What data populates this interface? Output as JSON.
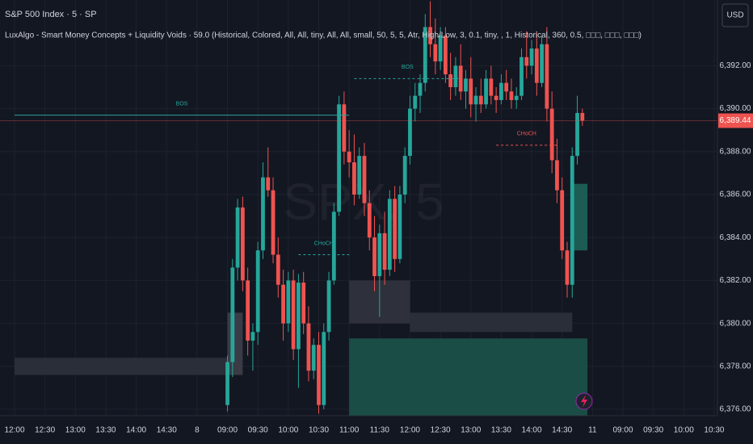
{
  "chart_data": {
    "type": "candlestick",
    "title": "S&P 500 Index · 5 · SP",
    "subtitle": "LuxAlgo - Smart Money Concepts + Liquidity Voids · 59.0 (Historical, Colored, All, All, tiny, All, All, small, 50, 5, 5, Atr, High/Low, 3, 0.1, tiny, , 1, Historical, 360, 0.5, □□□, □□□, □□□)",
    "currency": "USD",
    "watermark": "SPX, 5",
    "up_color": "#26a69a",
    "down_color": "#ef5350",
    "grid": true,
    "ylim": [
      6375.7,
      6395.06
    ],
    "yticks": [
      {
        "value": 6376,
        "label": "6,376.00"
      },
      {
        "value": 6378,
        "label": "6,378.00"
      },
      {
        "value": 6380,
        "label": "6,380.00"
      },
      {
        "value": 6382,
        "label": "6,382.00"
      },
      {
        "value": 6384,
        "label": "6,384.00"
      },
      {
        "value": 6386,
        "label": "6,386.00"
      },
      {
        "value": 6388,
        "label": "6,388.00"
      },
      {
        "value": 6390,
        "label": "6,390.00"
      },
      {
        "value": 6392,
        "label": "6,392.00"
      }
    ],
    "categories": [
      "12:00",
      null,
      null,
      null,
      null,
      null,
      "12:30",
      null,
      null,
      null,
      null,
      null,
      "13:00",
      null,
      null,
      null,
      null,
      null,
      "13:30",
      null,
      null,
      null,
      null,
      null,
      "14:00",
      null,
      null,
      null,
      null,
      null,
      "14:30",
      null,
      null,
      null,
      null,
      null,
      "8",
      null,
      null,
      null,
      null,
      null,
      "09:00",
      null,
      null,
      null,
      null,
      null,
      "09:30",
      null,
      null,
      null,
      null,
      null,
      "10:00",
      null,
      null,
      null,
      null,
      null,
      "10:30",
      null,
      null,
      null,
      null,
      null,
      "11:00",
      null,
      null,
      null,
      null,
      null,
      "11:30",
      null,
      null,
      null,
      null,
      null,
      "12:00",
      null,
      null,
      null,
      null,
      null,
      "12:30",
      null,
      null,
      null,
      null,
      null,
      "13:00",
      null,
      null,
      null,
      null,
      null,
      "13:30",
      null,
      null,
      null,
      null,
      null,
      "14:00",
      null,
      null,
      null,
      null,
      null,
      "14:30",
      null,
      null,
      null,
      null,
      null,
      "11",
      null,
      null,
      null,
      null,
      null,
      "09:00",
      null,
      null,
      null,
      null,
      null,
      "09:30",
      null,
      null,
      null,
      null,
      null,
      "10:00",
      null,
      null,
      null,
      null,
      null,
      "10:30"
    ],
    "open": [
      null,
      null,
      null,
      null,
      null,
      null,
      null,
      null,
      null,
      null,
      null,
      null,
      null,
      null,
      null,
      null,
      null,
      null,
      null,
      null,
      null,
      null,
      null,
      null,
      null,
      null,
      null,
      null,
      null,
      null,
      null,
      null,
      null,
      null,
      null,
      null,
      null,
      null,
      null,
      null,
      null,
      null,
      6376.2,
      6378.2,
      6382.6,
      6385.4,
      6382.0,
      6379.2,
      6379.6,
      6383.4,
      6386.8,
      6386.2,
      6383.2,
      6381.8,
      6380.0,
      6382.0,
      6378.8,
      6381.9,
      6380.0,
      6377.8,
      6379.0,
      6376.2,
      6379.6,
      6382.0,
      6385.2,
      6390.2,
      6388.0,
      6387.5,
      6386.0,
      6387.8,
      6385.6,
      6384.0,
      6382.2,
      6384.2,
      6382.5,
      6385.8,
      6383.0,
      6386.0,
      6387.8,
      6390.0,
      6390.6,
      6391.2,
      6393.8,
      6393.0,
      6392.2,
      6393.4,
      6391.6,
      6391.0,
      6392.0,
      6390.8,
      6391.4,
      6390.2,
      6390.6,
      6390.2,
      6391.4,
      6390.6,
      6390.4,
      6391.2,
      6390.8,
      6390.4,
      6390.6,
      6392.4,
      6392.0,
      6392.8,
      6391.2,
      6393.0,
      6390.0,
      6387.6,
      6386.2,
      6383.4,
      6381.8,
      6387.8,
      6389.8,
      null,
      null,
      null,
      null,
      null,
      null,
      null,
      null,
      null,
      null,
      null,
      null,
      null,
      null,
      null,
      null,
      null,
      null,
      null,
      null,
      null,
      null,
      null,
      null,
      null,
      null
    ],
    "high": [
      null,
      null,
      null,
      null,
      null,
      null,
      null,
      null,
      null,
      null,
      null,
      null,
      null,
      null,
      null,
      null,
      null,
      null,
      null,
      null,
      null,
      null,
      null,
      null,
      null,
      null,
      null,
      null,
      null,
      null,
      null,
      null,
      null,
      null,
      null,
      null,
      null,
      null,
      null,
      null,
      null,
      null,
      6378.5,
      6383.0,
      6385.8,
      6385.9,
      6382.6,
      6380.0,
      6383.8,
      6387.5,
      6388.2,
      6386.8,
      6384.0,
      6382.5,
      6382.4,
      6382.5,
      6382.3,
      6382.4,
      6380.8,
      6379.3,
      6379.6,
      6380.0,
      6382.4,
      6385.6,
      6390.6,
      6390.8,
      6389.0,
      6388.8,
      6388.2,
      6388.4,
      6386.2,
      6385.0,
      6384.6,
      6385.2,
      6386.2,
      6386.4,
      6386.4,
      6388.2,
      6390.6,
      6391.2,
      6391.6,
      6394.4,
      6395.0,
      6394.2,
      6393.8,
      6393.8,
      6392.6,
      6392.4,
      6393.0,
      6391.8,
      6392.4,
      6391.0,
      6391.4,
      6391.8,
      6392.0,
      6391.0,
      6391.6,
      6391.8,
      6391.4,
      6391.0,
      6392.8,
      6393.6,
      6393.2,
      6393.6,
      6393.4,
      6393.8,
      6390.8,
      6388.6,
      6386.8,
      6383.8,
      6388.2,
      6390.6,
      6390.0,
      null,
      null,
      null,
      null,
      null,
      null,
      null,
      null,
      null,
      null,
      null,
      null,
      null,
      null,
      null,
      null,
      null,
      null,
      null,
      null,
      null,
      null,
      null,
      null,
      null,
      null
    ],
    "low": [
      null,
      null,
      null,
      null,
      null,
      null,
      null,
      null,
      null,
      null,
      null,
      null,
      null,
      null,
      null,
      null,
      null,
      null,
      null,
      null,
      null,
      null,
      null,
      null,
      null,
      null,
      null,
      null,
      null,
      null,
      null,
      null,
      null,
      null,
      null,
      null,
      null,
      null,
      null,
      null,
      null,
      null,
      6375.9,
      6377.5,
      6382.0,
      6381.5,
      6378.5,
      6377.8,
      6379.0,
      6383.0,
      6385.9,
      6382.8,
      6381.2,
      6379.2,
      6379.6,
      6378.3,
      6377.0,
      6379.5,
      6377.3,
      6377.4,
      6375.8,
      6376.0,
      6379.2,
      6381.8,
      6385.0,
      6387.4,
      6386.8,
      6385.5,
      6385.8,
      6385.0,
      6383.4,
      6381.5,
      6380.3,
      6381.8,
      6382.2,
      6382.4,
      6382.8,
      6385.6,
      6387.4,
      6389.4,
      6389.8,
      6390.8,
      6392.4,
      6391.6,
      6391.8,
      6391.2,
      6390.4,
      6390.6,
      6390.4,
      6390.0,
      6389.6,
      6389.4,
      6389.8,
      6390.0,
      6390.2,
      6389.8,
      6390.2,
      6390.4,
      6390.0,
      6390.0,
      6390.4,
      6391.4,
      6391.6,
      6390.6,
      6391.0,
      6389.4,
      6387.0,
      6385.6,
      6383.0,
      6381.2,
      6381.2,
      6387.4,
      6389.2,
      null,
      null,
      null,
      null,
      null,
      null,
      null,
      null,
      null,
      null,
      null,
      null,
      null,
      null,
      null,
      null,
      null,
      null,
      null,
      null,
      null,
      null,
      null,
      null,
      null,
      null
    ],
    "close": [
      null,
      null,
      null,
      null,
      null,
      null,
      null,
      null,
      null,
      null,
      null,
      null,
      null,
      null,
      null,
      null,
      null,
      null,
      null,
      null,
      null,
      null,
      null,
      null,
      null,
      null,
      null,
      null,
      null,
      null,
      null,
      null,
      null,
      null,
      null,
      null,
      null,
      null,
      null,
      null,
      null,
      null,
      6378.2,
      6382.6,
      6385.4,
      6382.0,
      6379.2,
      6379.6,
      6383.4,
      6386.8,
      6386.2,
      6383.2,
      6381.8,
      6380.0,
      6382.0,
      6378.8,
      6381.9,
      6380.0,
      6377.8,
      6379.0,
      6376.2,
      6379.6,
      6382.0,
      6385.2,
      6390.2,
      6388.0,
      6387.5,
      6386.0,
      6387.8,
      6385.6,
      6384.0,
      6382.2,
      6384.2,
      6382.5,
      6385.8,
      6383.0,
      6386.0,
      6387.8,
      6390.0,
      6390.6,
      6391.2,
      6393.8,
      6393.0,
      6392.2,
      6393.4,
      6391.6,
      6391.0,
      6392.0,
      6390.8,
      6391.4,
      6390.2,
      6390.6,
      6390.2,
      6391.4,
      6390.6,
      6390.4,
      6391.2,
      6390.8,
      6390.4,
      6390.6,
      6392.4,
      6392.0,
      6392.8,
      6391.2,
      6393.0,
      6390.0,
      6387.6,
      6386.2,
      6383.4,
      6381.8,
      6387.8,
      6389.8,
      6389.44,
      null,
      null,
      null,
      null,
      null,
      null,
      null,
      null,
      null,
      null,
      null,
      null,
      null,
      null,
      null,
      null,
      null,
      null,
      null,
      null,
      null,
      null,
      null,
      null,
      null,
      null
    ],
    "zones": [
      {
        "low": 6377.6,
        "high": 6378.4,
        "from": 0,
        "to": 42,
        "color": "#2a2e39"
      },
      {
        "low": 6377.6,
        "high": 6380.5,
        "from": 42,
        "to": 45,
        "color": "#3a3b45"
      },
      {
        "low": 6380.0,
        "high": 6382.0,
        "from": 66,
        "to": 78,
        "color": "#2e313b"
      },
      {
        "low": 6379.6,
        "high": 6380.5,
        "from": 78,
        "to": 110,
        "color": "#2a2e39"
      },
      {
        "low": 6375.7,
        "high": 6379.3,
        "from": 66,
        "to": 113,
        "color": "#1b4d47"
      },
      {
        "low": 6383.4,
        "high": 6386.5,
        "from": 110,
        "to": 113,
        "color": "#1d5c55"
      }
    ],
    "levels": [
      {
        "label": "BOS",
        "value": 6389.7,
        "from": 0,
        "to": 66,
        "color": "#26a69a",
        "style": "solid"
      },
      {
        "label": "BOS",
        "value": 6391.4,
        "from": 67,
        "to": 88,
        "color": "#26a69a",
        "style": "dashed"
      },
      {
        "label": "CHoCH",
        "value": 6383.2,
        "from": 56,
        "to": 66,
        "color": "#26a69a",
        "style": "dashed"
      },
      {
        "label": "CHoCH",
        "value": 6388.3,
        "from": 95,
        "to": 107,
        "color": "#ef5350",
        "style": "dashed"
      }
    ],
    "last_price": {
      "value": 6389.44,
      "label": "6,389.44",
      "color": "#ef5350"
    }
  }
}
